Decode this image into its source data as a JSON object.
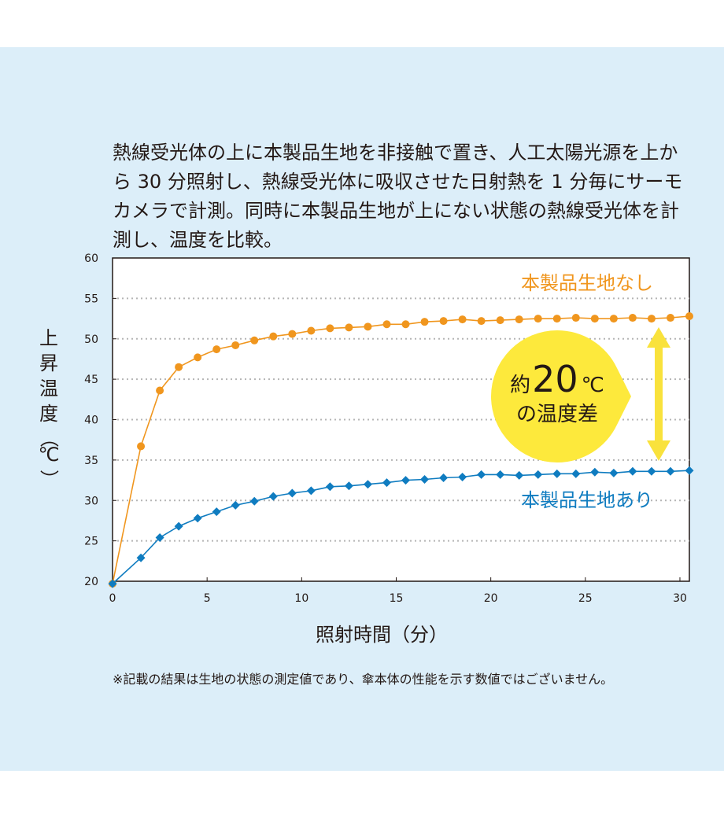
{
  "description": "熱線受光体の上に本製品生地を非接触で置き、人工太陽光源を上から 30 分照射し、熱線受光体に吸収させた日射熱を 1 分毎にサーモカメラで計測。同時に本製品生地が上にない状態の熱線受光体を計測し、温度を比較。",
  "footnote": "※記載の結果は生地の状態の測定値であり、傘本体の性能を示す数値ではございません。",
  "colors": {
    "background": "#dceef9",
    "plot_area": "#ffffff",
    "without_fabric": "#f0961e",
    "with_fabric": "#0f7cc0",
    "badge": "#fde93c",
    "arrow": "#f9e23c",
    "grid": "#b5b5b5"
  },
  "badge": {
    "prefix": "約",
    "number": "20",
    "unit": "℃",
    "line2": "の温度差"
  },
  "chart_data": {
    "type": "line",
    "title": "",
    "xlabel": "照射時間（分）",
    "ylabel": "上昇温度（℃）",
    "xlim": [
      0,
      30.5
    ],
    "ylim": [
      20,
      60
    ],
    "xticks": [
      0,
      5,
      10,
      15,
      20,
      25,
      30
    ],
    "yticks": [
      20,
      25,
      30,
      35,
      40,
      45,
      50,
      55,
      60
    ],
    "grid": "horizontal dotted",
    "x": [
      0,
      1.5,
      2.5,
      3.5,
      4.5,
      5.5,
      6.5,
      7.5,
      8.5,
      9.5,
      10.5,
      11.5,
      12.5,
      13.5,
      14.5,
      15.5,
      16.5,
      17.5,
      18.5,
      19.5,
      20.5,
      21.5,
      22.5,
      23.5,
      24.5,
      25.5,
      26.5,
      27.5,
      28.5,
      29.5,
      30.5
    ],
    "series": [
      {
        "name": "本製品生地なし",
        "marker": "circle",
        "values": [
          19.7,
          36.7,
          43.6,
          46.5,
          47.7,
          48.7,
          49.2,
          49.8,
          50.3,
          50.6,
          51.0,
          51.3,
          51.4,
          51.5,
          51.8,
          51.8,
          52.1,
          52.2,
          52.4,
          52.2,
          52.3,
          52.4,
          52.5,
          52.5,
          52.6,
          52.5,
          52.5,
          52.6,
          52.5,
          52.6,
          52.8
        ]
      },
      {
        "name": "本製品生地あり",
        "marker": "diamond",
        "values": [
          19.7,
          22.9,
          25.4,
          26.8,
          27.8,
          28.6,
          29.4,
          29.9,
          30.5,
          30.9,
          31.2,
          31.7,
          31.8,
          32.0,
          32.2,
          32.5,
          32.6,
          32.8,
          32.9,
          33.2,
          33.2,
          33.1,
          33.2,
          33.3,
          33.3,
          33.5,
          33.4,
          33.6,
          33.6,
          33.6,
          33.7
        ]
      }
    ]
  }
}
